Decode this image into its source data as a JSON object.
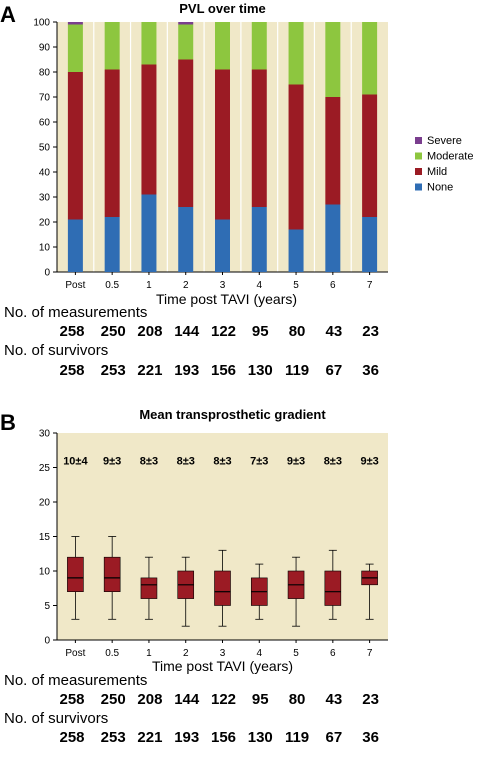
{
  "chart_data": [
    {
      "panel": "A",
      "type": "bar",
      "stacked": true,
      "title": "PVL over time",
      "xlabel": "Time post TAVI (years)",
      "ylabel": "",
      "ylim": [
        0,
        100
      ],
      "yticks": [
        0,
        10,
        20,
        30,
        40,
        50,
        60,
        70,
        80,
        90,
        100
      ],
      "categories": [
        "Post",
        "0.5",
        "1",
        "2",
        "3",
        "4",
        "5",
        "6",
        "7"
      ],
      "series": [
        {
          "name": "None",
          "color": "#2f6db4",
          "values": [
            21,
            22,
            31,
            26,
            21,
            26,
            17,
            27,
            22
          ]
        },
        {
          "name": "Mild",
          "color": "#9b1b24",
          "values": [
            59,
            59,
            52,
            59,
            60,
            55,
            58,
            43,
            49
          ]
        },
        {
          "name": "Moderate",
          "color": "#8dc63f",
          "values": [
            19,
            19,
            17,
            14,
            19,
            19,
            25,
            30,
            29
          ]
        },
        {
          "name": "Severe",
          "color": "#7a3e8e",
          "values": [
            1,
            0,
            0,
            1,
            0,
            0,
            0,
            0,
            0
          ]
        }
      ],
      "legend_order": [
        "Severe",
        "Moderate",
        "Mild",
        "None"
      ],
      "legend_position": "right",
      "background": "#f0e8c8",
      "grid": true,
      "table": {
        "measurements_label": "No. of measurements",
        "measurements": [
          "258",
          "250",
          "208",
          "144",
          "122",
          "95",
          "80",
          "43",
          "23"
        ],
        "survivors_label": "No. of survivors",
        "survivors": [
          "258",
          "253",
          "221",
          "193",
          "156",
          "130",
          "119",
          "67",
          "36"
        ]
      }
    },
    {
      "panel": "B",
      "type": "box",
      "title": "Mean transprosthetic gradient",
      "xlabel": "Time post TAVI (years)",
      "ylabel": "",
      "ylim": [
        0,
        30
      ],
      "yticks": [
        0,
        5,
        10,
        15,
        20,
        25,
        30
      ],
      "categories": [
        "Post",
        "0.5",
        "1",
        "2",
        "3",
        "4",
        "5",
        "6",
        "7"
      ],
      "box_color": "#9b1b24",
      "background": "#f0e8c8",
      "grid": false,
      "boxes": [
        {
          "min": 3,
          "q1": 7,
          "median": 9,
          "q3": 12,
          "max": 15
        },
        {
          "min": 3,
          "q1": 7,
          "median": 9,
          "q3": 12,
          "max": 15
        },
        {
          "min": 3,
          "q1": 6,
          "median": 8,
          "q3": 9,
          "max": 12
        },
        {
          "min": 2,
          "q1": 6,
          "median": 8,
          "q3": 10,
          "max": 12
        },
        {
          "min": 2,
          "q1": 5,
          "median": 7,
          "q3": 10,
          "max": 13
        },
        {
          "min": 3,
          "q1": 5,
          "median": 7,
          "q3": 9,
          "max": 11
        },
        {
          "min": 2,
          "q1": 6,
          "median": 8,
          "q3": 10,
          "max": 12
        },
        {
          "min": 3,
          "q1": 5,
          "median": 7,
          "q3": 10,
          "max": 13
        },
        {
          "min": 3,
          "q1": 8,
          "median": 9,
          "q3": 10,
          "max": 11
        }
      ],
      "mean_labels": [
        "10±4",
        "9±3",
        "8±3",
        "8±3",
        "8±3",
        "7±3",
        "9±3",
        "8±3",
        "9±3"
      ],
      "mean_labels_y": 26,
      "table": {
        "measurements_label": "No. of measurements",
        "measurements": [
          "258",
          "250",
          "208",
          "144",
          "122",
          "95",
          "80",
          "43",
          "23"
        ],
        "survivors_label": "No. of survivors",
        "survivors": [
          "258",
          "253",
          "221",
          "193",
          "156",
          "130",
          "119",
          "67",
          "36"
        ]
      }
    }
  ]
}
